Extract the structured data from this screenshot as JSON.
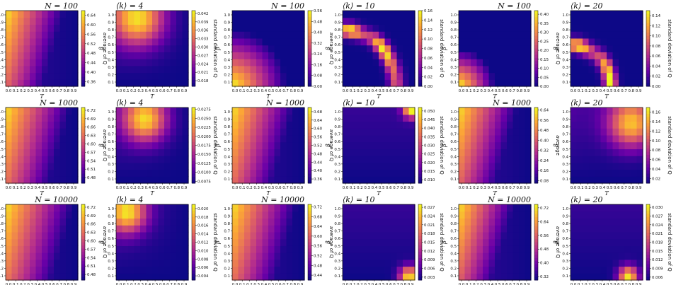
{
  "figure": {
    "xlabel": "T",
    "ylabel": "β",
    "colormap": [
      "#0d0887",
      "#6a00a8",
      "#b12a90",
      "#e16462",
      "#fca636",
      "#f0f921"
    ]
  },
  "chart_data": [
    {
      "type": "heatmap",
      "id": "avg-n100-k4",
      "title_left": "N = 100",
      "title_right": "",
      "colorbar_label": "average of Q",
      "xlabel": "T",
      "ylabel": "β",
      "x_ticks": [
        "0.0",
        "0.1",
        "0.2",
        "0.3",
        "0.4",
        "0.5",
        "0.6",
        "0.7",
        "0.8",
        "0.9"
      ],
      "y_ticks": [
        "0.1",
        "0.2",
        "0.3",
        "0.4",
        "0.5",
        "0.6",
        "0.7",
        "0.8",
        "0.9",
        "1.0"
      ],
      "cb_ticks": [
        "0.64",
        "0.60",
        "0.56",
        "0.52",
        "0.48",
        "0.44",
        "0.40",
        "0.36"
      ],
      "cb_range": [
        0.34,
        0.66
      ],
      "pattern": "avg",
      "center": [
        0.0,
        0.0
      ],
      "spread": 0.9
    },
    {
      "type": "heatmap",
      "id": "std-n100-k4",
      "title_left": "⟨k⟩ = 4",
      "title_right": "",
      "colorbar_label": "standard deviation of Q",
      "xlabel": "T",
      "ylabel": "β",
      "x_ticks": [
        "0.0",
        "0.1",
        "0.2",
        "0.3",
        "0.4",
        "0.5",
        "0.6",
        "0.7",
        "0.8",
        "0.9"
      ],
      "y_ticks": [
        "0.1",
        "0.2",
        "0.3",
        "0.4",
        "0.5",
        "0.6",
        "0.7",
        "0.8",
        "0.9",
        "1.0"
      ],
      "cb_ticks": [
        "0.042",
        "0.039",
        "0.036",
        "0.033",
        "0.030",
        "0.027",
        "0.024",
        "0.021",
        "0.018"
      ],
      "cb_range": [
        0.016,
        0.043
      ],
      "pattern": "std_top",
      "center": [
        0.3,
        0.9
      ],
      "spread": 0.6
    },
    {
      "type": "heatmap",
      "id": "avg-n100-k10",
      "title_left": "N = 100",
      "title_right": "",
      "colorbar_label": "average of Q",
      "xlabel": "T",
      "ylabel": "β",
      "x_ticks": [
        "0.0",
        "0.1",
        "0.2",
        "0.3",
        "0.4",
        "0.5",
        "0.6",
        "0.7",
        "0.8",
        "0.9"
      ],
      "y_ticks": [
        "0.1",
        "0.2",
        "0.3",
        "0.4",
        "0.5",
        "0.6",
        "0.7",
        "0.8",
        "0.9",
        "1.0"
      ],
      "cb_ticks": [
        "0.56",
        "0.48",
        "0.40",
        "0.32",
        "0.24",
        "0.16",
        "0.08",
        "0.00"
      ],
      "cb_range": [
        0.0,
        0.56
      ],
      "pattern": "avg_corner",
      "center": [
        0.0,
        0.0
      ],
      "spread": 0.75
    },
    {
      "type": "heatmap",
      "id": "std-n100-k10",
      "title_left": "⟨k⟩ = 10",
      "title_right": "",
      "colorbar_label": "standard deviation of Q",
      "xlabel": "T",
      "ylabel": "β",
      "x_ticks": [
        "0.0",
        "0.1",
        "0.2",
        "0.3",
        "0.4",
        "0.5",
        "0.6",
        "0.7",
        "0.8",
        "0.9"
      ],
      "y_ticks": [
        "0.1",
        "0.2",
        "0.3",
        "0.4",
        "0.5",
        "0.6",
        "0.7",
        "0.8",
        "0.9",
        "1.0"
      ],
      "cb_ticks": [
        "0.16",
        "0.14",
        "0.12",
        "0.10",
        "0.08",
        "0.06",
        "0.04",
        "0.02",
        "0.00"
      ],
      "cb_range": [
        0.0,
        0.16
      ],
      "pattern": "arc",
      "center": [
        0.0,
        0.0
      ],
      "spread": 0.75
    },
    {
      "type": "heatmap",
      "id": "avg-n100-k20",
      "title_left": "N = 100",
      "title_right": "",
      "colorbar_label": "average of Q",
      "xlabel": "T",
      "ylabel": "β",
      "x_ticks": [
        "0.0",
        "0.1",
        "0.2",
        "0.3",
        "0.4",
        "0.5",
        "0.6",
        "0.7",
        "0.8",
        "0.9"
      ],
      "y_ticks": [
        "0.1",
        "0.2",
        "0.3",
        "0.4",
        "0.5",
        "0.6",
        "0.7",
        "0.8",
        "0.9",
        "1.0"
      ],
      "cb_ticks": [
        "0.40",
        "0.35",
        "0.30",
        "0.25",
        "0.20",
        "0.15",
        "0.10",
        "0.05",
        "0.00"
      ],
      "cb_range": [
        0.0,
        0.42
      ],
      "pattern": "avg_corner",
      "center": [
        0.0,
        0.0
      ],
      "spread": 0.5
    },
    {
      "type": "heatmap",
      "id": "std-n100-k20",
      "title_left": "⟨k⟩ = 20",
      "title_right": "",
      "colorbar_label": "standard deviation of Q",
      "xlabel": "T",
      "ylabel": "β",
      "x_ticks": [
        "0.0",
        "0.1",
        "0.2",
        "0.3",
        "0.4",
        "0.5",
        "0.6",
        "0.7",
        "0.8",
        "0.9"
      ],
      "y_ticks": [
        "0.1",
        "0.2",
        "0.3",
        "0.4",
        "0.5",
        "0.6",
        "0.7",
        "0.8",
        "0.9",
        "1.0"
      ],
      "cb_ticks": [
        "0.14",
        "0.12",
        "0.10",
        "0.08",
        "0.06",
        "0.04",
        "0.02",
        "0.00"
      ],
      "cb_range": [
        0.0,
        0.15
      ],
      "pattern": "arc",
      "center": [
        0.0,
        0.0
      ],
      "spread": 0.55
    },
    {
      "type": "heatmap",
      "id": "avg-n1000-k4",
      "title_left": "N = 1000",
      "title_right": "",
      "colorbar_label": "average of Q",
      "xlabel": "T",
      "ylabel": "β",
      "x_ticks": [
        "0.0",
        "0.1",
        "0.2",
        "0.3",
        "0.4",
        "0.5",
        "0.6",
        "0.7",
        "0.8",
        "0.9"
      ],
      "y_ticks": [
        "0.1",
        "0.2",
        "0.3",
        "0.4",
        "0.5",
        "0.6",
        "0.7",
        "0.8",
        "0.9",
        "1.0"
      ],
      "cb_ticks": [
        "0.72",
        "0.69",
        "0.66",
        "0.63",
        "0.60",
        "0.57",
        "0.54",
        "0.51",
        "0.48"
      ],
      "cb_range": [
        0.46,
        0.73
      ],
      "pattern": "avg",
      "center": [
        0.0,
        0.0
      ],
      "spread": 1.0
    },
    {
      "type": "heatmap",
      "id": "std-n1000-k4",
      "title_left": "⟨k⟩ = 4",
      "title_right": "",
      "colorbar_label": "standard deviation of Q",
      "xlabel": "T",
      "ylabel": "β",
      "x_ticks": [
        "0.0",
        "0.1",
        "0.2",
        "0.3",
        "0.4",
        "0.5",
        "0.6",
        "0.7",
        "0.8",
        "0.9"
      ],
      "y_ticks": [
        "0.1",
        "0.2",
        "0.3",
        "0.4",
        "0.5",
        "0.6",
        "0.7",
        "0.8",
        "0.9",
        "1.0"
      ],
      "cb_ticks": [
        "0.0275",
        "0.0250",
        "0.0225",
        "0.0200",
        "0.0175",
        "0.0150",
        "0.0125",
        "0.0100",
        "0.0075"
      ],
      "cb_range": [
        0.007,
        0.028
      ],
      "pattern": "std_top",
      "center": [
        0.4,
        0.85
      ],
      "spread": 0.5
    },
    {
      "type": "heatmap",
      "id": "avg-n1000-k10",
      "title_left": "N = 1000",
      "title_right": "",
      "colorbar_label": "average of Q",
      "xlabel": "T",
      "ylabel": "β",
      "x_ticks": [
        "0.0",
        "0.1",
        "0.2",
        "0.3",
        "0.4",
        "0.5",
        "0.6",
        "0.7",
        "0.8",
        "0.9"
      ],
      "y_ticks": [
        "0.1",
        "0.2",
        "0.3",
        "0.4",
        "0.5",
        "0.6",
        "0.7",
        "0.8",
        "0.9",
        "1.0"
      ],
      "cb_ticks": [
        "0.68",
        "0.64",
        "0.60",
        "0.56",
        "0.52",
        "0.48",
        "0.44",
        "0.40",
        "0.36"
      ],
      "cb_range": [
        0.34,
        0.7
      ],
      "pattern": "avg",
      "center": [
        0.0,
        0.0
      ],
      "spread": 0.95
    },
    {
      "type": "heatmap",
      "id": "std-n1000-k10",
      "title_left": "⟨k⟩ = 10",
      "title_right": "",
      "colorbar_label": "standard deviation of Q",
      "xlabel": "T",
      "ylabel": "β",
      "x_ticks": [
        "0.0",
        "0.1",
        "0.2",
        "0.3",
        "0.4",
        "0.5",
        "0.6",
        "0.7",
        "0.8",
        "0.9"
      ],
      "y_ticks": [
        "0.1",
        "0.2",
        "0.3",
        "0.4",
        "0.5",
        "0.6",
        "0.7",
        "0.8",
        "0.9",
        "1.0"
      ],
      "cb_ticks": [
        "0.050",
        "0.045",
        "0.040",
        "0.035",
        "0.030",
        "0.025",
        "0.020",
        "0.015",
        "0.010"
      ],
      "cb_range": [
        0.008,
        0.052
      ],
      "pattern": "spot",
      "center": [
        0.95,
        0.98
      ],
      "spread": 0.25
    },
    {
      "type": "heatmap",
      "id": "avg-n1000-k20",
      "title_left": "N = 1000",
      "title_right": "",
      "colorbar_label": "average",
      "xlabel": "T",
      "ylabel": "β",
      "x_ticks": [
        "0.0",
        "0.1",
        "0.2",
        "0.3",
        "0.4",
        "0.5",
        "0.6",
        "0.7",
        "0.8",
        "0.9"
      ],
      "y_ticks": [
        "0.1",
        "0.2",
        "0.3",
        "0.4",
        "0.5",
        "0.6",
        "0.7",
        "0.8",
        "0.9",
        "1.0"
      ],
      "cb_ticks": [
        "0.64",
        "0.56",
        "0.48",
        "0.40",
        "0.32",
        "0.24",
        "0.16",
        "0.08"
      ],
      "cb_range": [
        0.06,
        0.66
      ],
      "pattern": "avg",
      "center": [
        0.0,
        0.0
      ],
      "spread": 0.9
    },
    {
      "type": "heatmap",
      "id": "std-n1000-k20",
      "title_left": "⟨k⟩ = 20",
      "title_right": "",
      "colorbar_label": "standard deviation of Q",
      "xlabel": "T",
      "ylabel": "β",
      "x_ticks": [
        "0.0",
        "0.1",
        "0.2",
        "0.3",
        "0.4",
        "0.5",
        "0.6",
        "0.7",
        "0.8",
        "0.9"
      ],
      "y_ticks": [
        "0.1",
        "0.2",
        "0.3",
        "0.4",
        "0.5",
        "0.6",
        "0.7",
        "0.8",
        "0.9",
        "1.0"
      ],
      "cb_ticks": [
        "0.16",
        "0.14",
        "0.12",
        "0.10",
        "0.08",
        "0.06",
        "0.04",
        "0.02"
      ],
      "cb_range": [
        0.01,
        0.17
      ],
      "pattern": "std_top",
      "center": [
        0.85,
        0.8
      ],
      "spread": 0.55
    },
    {
      "type": "heatmap",
      "id": "avg-n10000-k4",
      "title_left": "N = 10000",
      "title_right": "",
      "colorbar_label": "average of Q",
      "xlabel": "T",
      "ylabel": "β",
      "x_ticks": [
        "0.0",
        "0.1",
        "0.2",
        "0.3",
        "0.4",
        "0.5",
        "0.6",
        "0.7",
        "0.8",
        "0.9"
      ],
      "y_ticks": [
        "0.1",
        "0.2",
        "0.3",
        "0.4",
        "0.5",
        "0.6",
        "0.7",
        "0.8",
        "0.9",
        "1.0"
      ],
      "cb_ticks": [
        "0.72",
        "0.69",
        "0.66",
        "0.63",
        "0.60",
        "0.57",
        "0.54",
        "0.51",
        "0.48"
      ],
      "cb_range": [
        0.46,
        0.73
      ],
      "pattern": "avg",
      "center": [
        0.0,
        0.0
      ],
      "spread": 1.05
    },
    {
      "type": "heatmap",
      "id": "std-n10000-k4",
      "title_left": "⟨k⟩ = 4",
      "title_right": "",
      "colorbar_label": "standard deviation of Q",
      "xlabel": "T",
      "ylabel": "β",
      "x_ticks": [
        "0.0",
        "0.1",
        "0.2",
        "0.3",
        "0.4",
        "0.5",
        "0.6",
        "0.7",
        "0.8",
        "0.9"
      ],
      "y_ticks": [
        "0.1",
        "0.2",
        "0.3",
        "0.4",
        "0.5",
        "0.6",
        "0.7",
        "0.8",
        "0.9",
        "1.0"
      ],
      "cb_ticks": [
        "0.020",
        "0.018",
        "0.016",
        "0.014",
        "0.012",
        "0.010",
        "0.008",
        "0.006",
        "0.004"
      ],
      "cb_range": [
        0.003,
        0.021
      ],
      "pattern": "std_top",
      "center": [
        0.15,
        0.9
      ],
      "spread": 0.45
    },
    {
      "type": "heatmap",
      "id": "avg-n10000-k10",
      "title_left": "N = 10000",
      "title_right": "",
      "colorbar_label": "average of Q",
      "xlabel": "T",
      "ylabel": "β",
      "x_ticks": [
        "0.0",
        "0.1",
        "0.2",
        "0.3",
        "0.4",
        "0.5",
        "0.6",
        "0.7",
        "0.8",
        "0.9"
      ],
      "y_ticks": [
        "0.1",
        "0.2",
        "0.3",
        "0.4",
        "0.5",
        "0.6",
        "0.7",
        "0.8",
        "0.9",
        "1.0"
      ],
      "cb_ticks": [
        "0.72",
        "0.68",
        "0.64",
        "0.60",
        "0.56",
        "0.52",
        "0.48",
        "0.44"
      ],
      "cb_range": [
        0.42,
        0.73
      ],
      "pattern": "avg",
      "center": [
        0.0,
        0.0
      ],
      "spread": 1.0
    },
    {
      "type": "heatmap",
      "id": "std-n10000-k10",
      "title_left": "⟨k⟩ = 10",
      "title_right": "",
      "colorbar_label": "standard deviation of Q",
      "xlabel": "T",
      "ylabel": "β",
      "x_ticks": [
        "0.0",
        "0.1",
        "0.2",
        "0.3",
        "0.4",
        "0.5",
        "0.6",
        "0.7",
        "0.8",
        "0.9"
      ],
      "y_ticks": [
        "0.1",
        "0.2",
        "0.3",
        "0.4",
        "0.5",
        "0.6",
        "0.7",
        "0.8",
        "0.9",
        "1.0"
      ],
      "cb_ticks": [
        "0.027",
        "0.024",
        "0.021",
        "0.018",
        "0.015",
        "0.012",
        "0.009",
        "0.006",
        "0.003"
      ],
      "cb_range": [
        0.002,
        0.028
      ],
      "pattern": "spot",
      "center": [
        0.92,
        0.05
      ],
      "spread": 0.3
    },
    {
      "type": "heatmap",
      "id": "avg-n10000-k20",
      "title_left": "N = 10000",
      "title_right": "",
      "colorbar_label": "average of Q",
      "xlabel": "T",
      "ylabel": "β",
      "x_ticks": [
        "0.0",
        "0.1",
        "0.2",
        "0.3",
        "0.4",
        "0.5",
        "0.6",
        "0.7",
        "0.8",
        "0.9"
      ],
      "y_ticks": [
        "0.1",
        "0.2",
        "0.3",
        "0.4",
        "0.5",
        "0.6",
        "0.7",
        "0.8",
        "0.9",
        "1.0"
      ],
      "cb_ticks": [
        "0.72",
        "0.64",
        "0.56",
        "0.48",
        "0.40",
        "0.32"
      ],
      "cb_range": [
        0.3,
        0.74
      ],
      "pattern": "avg",
      "center": [
        0.0,
        0.0
      ],
      "spread": 0.85
    },
    {
      "type": "heatmap",
      "id": "std-n10000-k20",
      "title_left": "⟨k⟩ = 20",
      "title_right": "",
      "colorbar_label": "standard deviation of Q",
      "xlabel": "T",
      "ylabel": "β",
      "x_ticks": [
        "0.0",
        "0.1",
        "0.2",
        "0.3",
        "0.4",
        "0.5",
        "0.6",
        "0.7",
        "0.8",
        "0.9"
      ],
      "y_ticks": [
        "0.1",
        "0.2",
        "0.3",
        "0.4",
        "0.5",
        "0.6",
        "0.7",
        "0.8",
        "0.9",
        "1.0"
      ],
      "cb_ticks": [
        "0.030",
        "0.027",
        "0.024",
        "0.021",
        "0.018",
        "0.015",
        "0.012",
        "0.009",
        "0.006"
      ],
      "cb_range": [
        0.005,
        0.031
      ],
      "pattern": "spot",
      "center": [
        0.8,
        0.05
      ],
      "spread": 0.3
    }
  ]
}
